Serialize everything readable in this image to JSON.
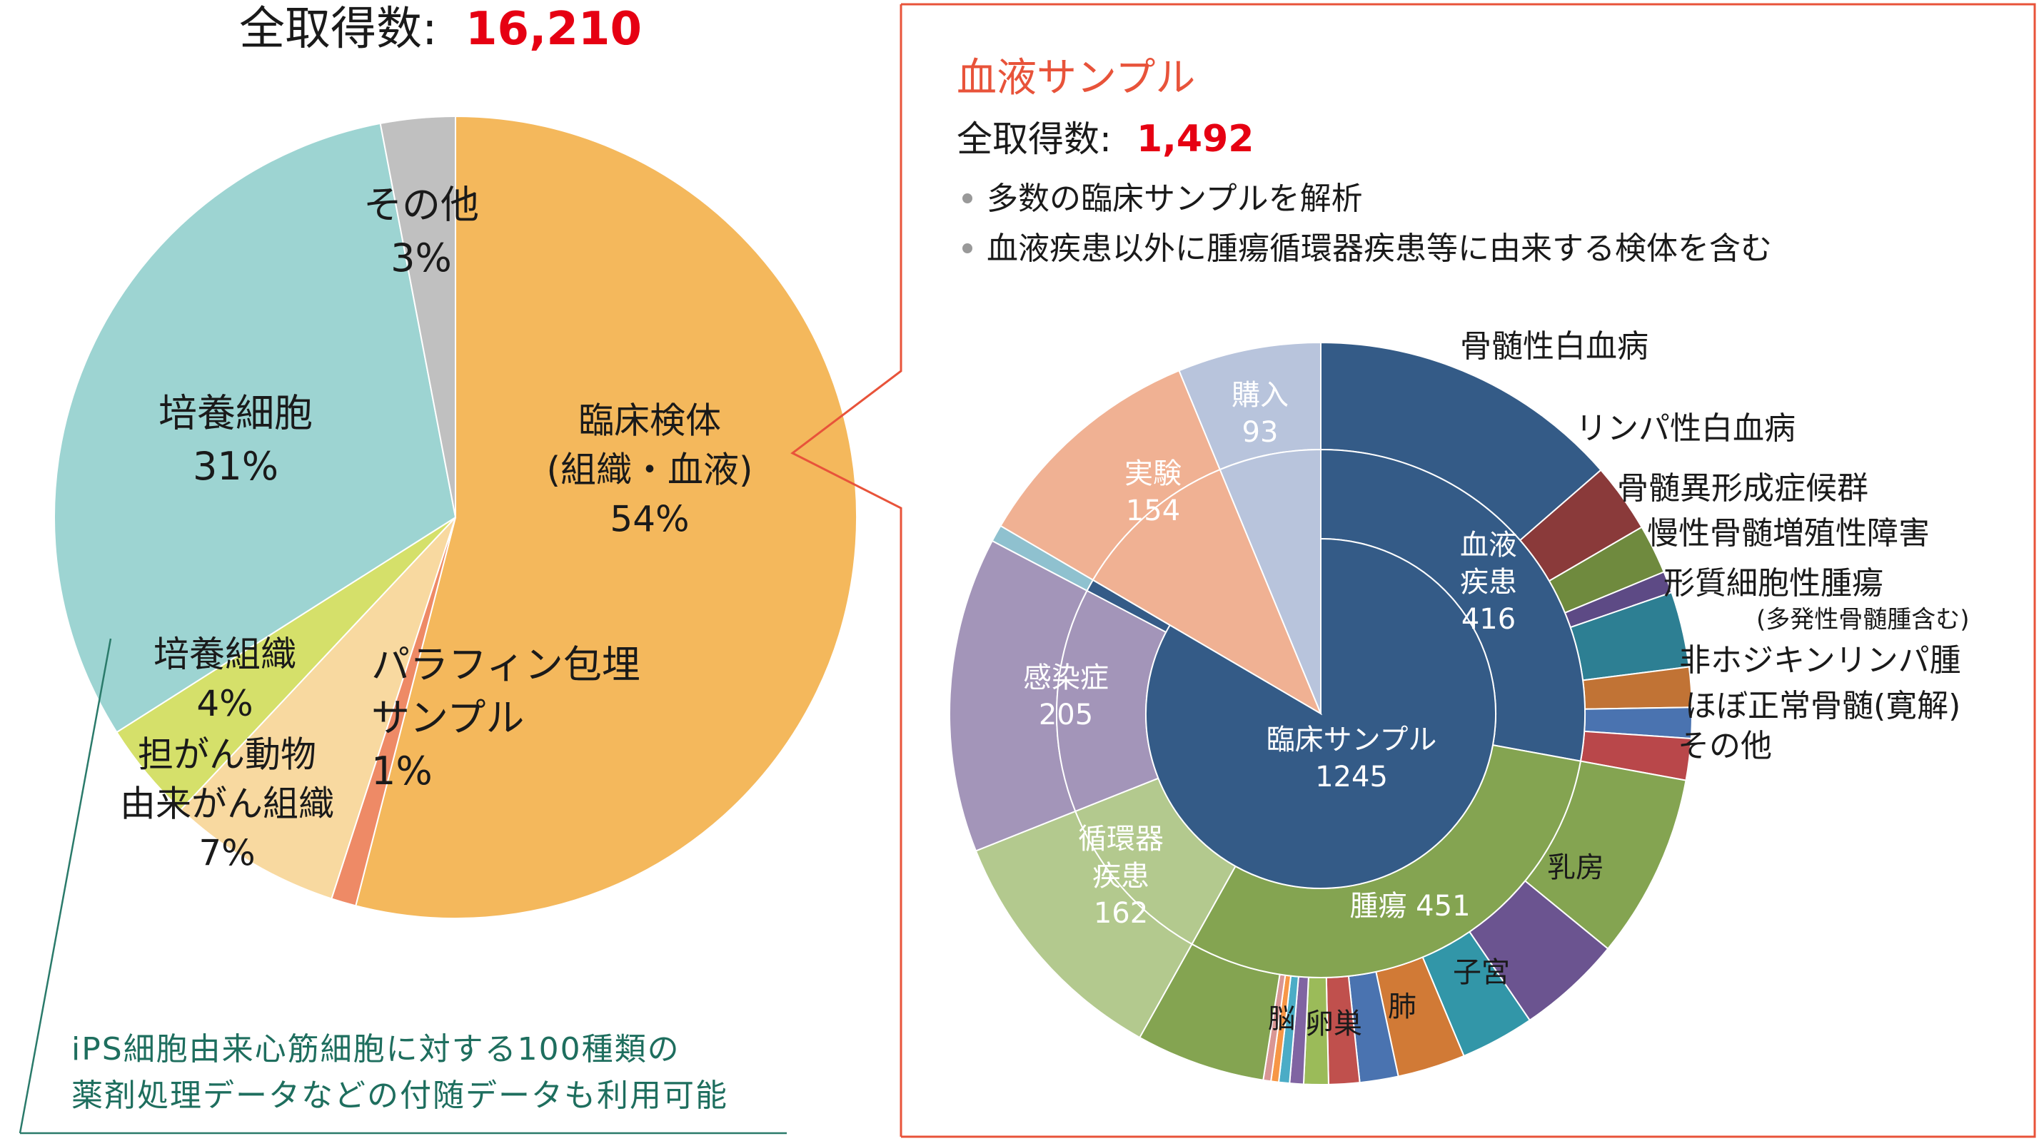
{
  "left_chart": {
    "total_label": "全取得数:",
    "total_value": "16,210",
    "note_line1": "iPS細胞由来心筋細胞に対する100種類の",
    "note_line2": "薬剤処理データなどの付随データも利用可能"
  },
  "right_panel": {
    "title": "血液サンプル",
    "total_label": "全取得数:",
    "total_value": "1,492",
    "bullets": [
      "多数の臨床サンプルを解析",
      "血液疾患以外に腫瘍循環器疾患等に由来する検体を含む"
    ]
  },
  "colors": {
    "total_red": "#e60012",
    "title_red": "#e8533a",
    "panel_border": "#e8533a",
    "note_green": "#1e6e5e"
  },
  "chart_data": [
    {
      "type": "pie",
      "title": "全取得数: 16,210",
      "slices": [
        {
          "label_lines": [
            "臨床検体",
            "(組織・血液)",
            "54%"
          ],
          "value": 54,
          "color": "#f4b85c"
        },
        {
          "label_lines": [
            "パラフィン包埋",
            "サンプル",
            "1%"
          ],
          "value": 1,
          "color": "#ee8a66"
        },
        {
          "label_lines": [
            "担がん動物",
            "由来がん組織",
            "7%"
          ],
          "value": 7,
          "color": "#f8d9a0"
        },
        {
          "label_lines": [
            "培養組織",
            "4%"
          ],
          "value": 4,
          "color": "#d5e06a"
        },
        {
          "label_lines": [
            "培養細胞",
            "31%"
          ],
          "value": 31,
          "color": "#9dd4d2"
        },
        {
          "label_lines": [
            "その他",
            "3%"
          ],
          "value": 3,
          "color": "#c0c0c0"
        }
      ]
    },
    {
      "type": "pie",
      "subtype": "sunburst",
      "title": "血液サンプル",
      "inner": [
        {
          "label": "臨床サンプル",
          "value": 1245,
          "value_text": "1245",
          "color": "#345b87"
        },
        {
          "label": "実験",
          "value": 154,
          "value_text": "154",
          "color": "#f0b193"
        },
        {
          "label": "購入",
          "value": 93,
          "value_text": "93",
          "color": "#b8c4dc"
        }
      ],
      "outer": [
        {
          "label": "血液疾患",
          "value": 416,
          "value_text": "416",
          "color": "#345b87",
          "parent": "臨床サンプル"
        },
        {
          "label": "腫瘍",
          "value": 451,
          "value_text": "451",
          "color": "#84a451",
          "parent": "臨床サンプル"
        },
        {
          "label": "循環器疾患",
          "value": 162,
          "value_text": "162",
          "color": "#b3c98e",
          "parent": "臨床サンプル"
        },
        {
          "label": "感染症",
          "value": 205,
          "value_text": "205",
          "color": "#a395b9",
          "parent": "臨床サンプル"
        },
        {
          "label": "",
          "value": 11,
          "color": "#8fc1cf",
          "parent": "臨床サンプル"
        },
        {
          "label": "実験",
          "value": 154,
          "color": "#f0b193",
          "parent": "実験"
        },
        {
          "label": "購入",
          "value": 93,
          "color": "#b8c4dc",
          "parent": "購入"
        }
      ],
      "blood_breakdown": [
        {
          "label": "骨髄性白血病",
          "value": 203,
          "color": "#345b87"
        },
        {
          "label": "リンパ性白血病",
          "value": 45,
          "color": "#8a3a3a"
        },
        {
          "label": "骨髄異形成症候群",
          "value": 32,
          "color": "#6f8a3e"
        },
        {
          "label": "慢性骨髄増殖性障害",
          "value": 14,
          "color": "#5d4a85"
        },
        {
          "label": "形質細胞性腫瘍",
          "label_note": "(多発性骨髄腫含む)",
          "value": 49,
          "color": "#2d7f93"
        },
        {
          "label": "非ホジキンリンパ腫",
          "value": 26,
          "color": "#c17335"
        },
        {
          "label": "ほぼ正常骨髄(寛解)",
          "value": 20,
          "color": "#4a73b0"
        },
        {
          "label": "その他",
          "value": 27,
          "color": "#b9474a"
        }
      ],
      "tumor_breakdown": [
        {
          "label": "乳房",
          "value": 120,
          "color": "#84a451"
        },
        {
          "label": "子宮",
          "value": 68,
          "color": "#6b5490"
        },
        {
          "label": "肺",
          "value": 48,
          "color": "#3296a8"
        },
        {
          "label": "卵巣",
          "value": 44,
          "color": "#d17a36"
        },
        {
          "label": "脳",
          "value": 25,
          "color": "#4a73b0"
        },
        {
          "label": "",
          "value": 20,
          "color": "#c0504d"
        },
        {
          "label": "",
          "value": 16,
          "color": "#9bbb59"
        },
        {
          "label": "",
          "value": 9,
          "color": "#8064a2"
        },
        {
          "label": "",
          "value": 7,
          "color": "#4bacc6"
        },
        {
          "label": "",
          "value": 5,
          "color": "#f79646"
        },
        {
          "label": "",
          "value": 5,
          "color": "#d99694"
        },
        {
          "label": "",
          "value": 84,
          "color": "#84a451"
        }
      ]
    }
  ]
}
